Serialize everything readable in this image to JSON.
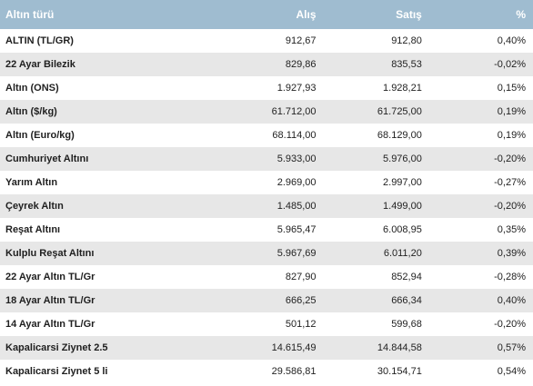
{
  "header": {
    "name": "Altın türü",
    "alis": "Alış",
    "satis": "Satış",
    "pct": "%"
  },
  "rows": [
    {
      "name": "ALTIN (TL/GR)",
      "alis": "912,67",
      "satis": "912,80",
      "pct": "0,40%"
    },
    {
      "name": "22 Ayar Bilezik",
      "alis": "829,86",
      "satis": "835,53",
      "pct": "-0,02%"
    },
    {
      "name": "Altın (ONS)",
      "alis": "1.927,93",
      "satis": "1.928,21",
      "pct": "0,15%"
    },
    {
      "name": "Altın ($/kg)",
      "alis": "61.712,00",
      "satis": "61.725,00",
      "pct": "0,19%"
    },
    {
      "name": "Altın (Euro/kg)",
      "alis": "68.114,00",
      "satis": "68.129,00",
      "pct": "0,19%"
    },
    {
      "name": "Cumhuriyet Altını",
      "alis": "5.933,00",
      "satis": "5.976,00",
      "pct": "-0,20%"
    },
    {
      "name": "Yarım Altın",
      "alis": "2.969,00",
      "satis": "2.997,00",
      "pct": "-0,27%"
    },
    {
      "name": "Çeyrek Altın",
      "alis": "1.485,00",
      "satis": "1.499,00",
      "pct": "-0,20%"
    },
    {
      "name": "Reşat Altını",
      "alis": "5.965,47",
      "satis": "6.008,95",
      "pct": "0,35%"
    },
    {
      "name": "Kulplu Reşat Altını",
      "alis": "5.967,69",
      "satis": "6.011,20",
      "pct": "0,39%"
    },
    {
      "name": "22 Ayar Altın TL/Gr",
      "alis": "827,90",
      "satis": "852,94",
      "pct": "-0,28%"
    },
    {
      "name": "18 Ayar Altın TL/Gr",
      "alis": "666,25",
      "satis": "666,34",
      "pct": "0,40%"
    },
    {
      "name": "14 Ayar Altın TL/Gr",
      "alis": "501,12",
      "satis": "599,68",
      "pct": "-0,20%"
    },
    {
      "name": "Kapalicarsi Ziynet 2.5",
      "alis": "14.615,49",
      "satis": "14.844,58",
      "pct": "0,57%"
    },
    {
      "name": "Kapalicarsi Ziynet 5 li",
      "alis": "29.586,81",
      "satis": "30.154,71",
      "pct": "0,54%"
    }
  ]
}
